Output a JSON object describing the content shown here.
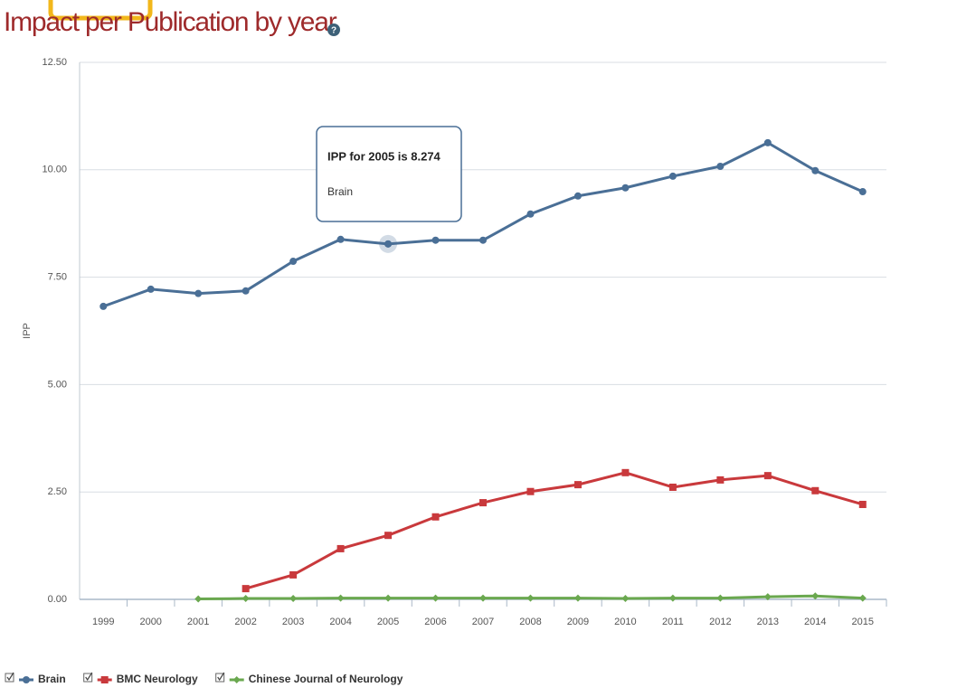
{
  "chart_data": {
    "type": "line",
    "title": "Impact per Publication by year",
    "y_label": "IPP",
    "categories": [
      "1999",
      "2000",
      "2001",
      "2002",
      "2003",
      "2004",
      "2005",
      "2006",
      "2007",
      "2008",
      "2009",
      "2010",
      "2011",
      "2012",
      "2013",
      "2014",
      "2015"
    ],
    "series": [
      {
        "name": "Brain",
        "color": "#4a6f96",
        "marker": "circle",
        "values": [
          6.82,
          7.22,
          7.12,
          7.18,
          7.87,
          8.38,
          8.274,
          8.36,
          8.36,
          8.97,
          9.39,
          9.58,
          9.85,
          10.08,
          10.63,
          9.98,
          9.49
        ]
      },
      {
        "name": "BMC Neurology",
        "color": "#c9393c",
        "marker": "square",
        "values": [
          null,
          null,
          null,
          0.25,
          0.57,
          1.18,
          1.49,
          1.92,
          2.25,
          2.51,
          2.67,
          2.95,
          2.61,
          2.78,
          2.88,
          2.53,
          2.21
        ]
      },
      {
        "name": "Chinese Journal of Neurology",
        "color": "#6aa84f",
        "marker": "diamond",
        "values": [
          null,
          null,
          0.01,
          0.02,
          0.02,
          0.03,
          0.03,
          0.03,
          0.03,
          0.03,
          0.03,
          0.02,
          0.03,
          0.03,
          0.06,
          0.08,
          0.03
        ]
      }
    ],
    "ylim": [
      0,
      12.5
    ],
    "yticks": [
      {
        "value": 0,
        "label": "0.00"
      },
      {
        "value": 2.5,
        "label": "2.50"
      },
      {
        "value": 5,
        "label": "5.00"
      },
      {
        "value": 7.5,
        "label": "7.50"
      },
      {
        "value": 10,
        "label": "10.00"
      },
      {
        "value": 12.5,
        "label": "12.50"
      }
    ],
    "grid": true,
    "legend": "bottom-left",
    "tooltip": {
      "text": "IPP for 2005 is 8.274",
      "series": "Brain",
      "series_index": 0,
      "point_index": 6
    }
  }
}
